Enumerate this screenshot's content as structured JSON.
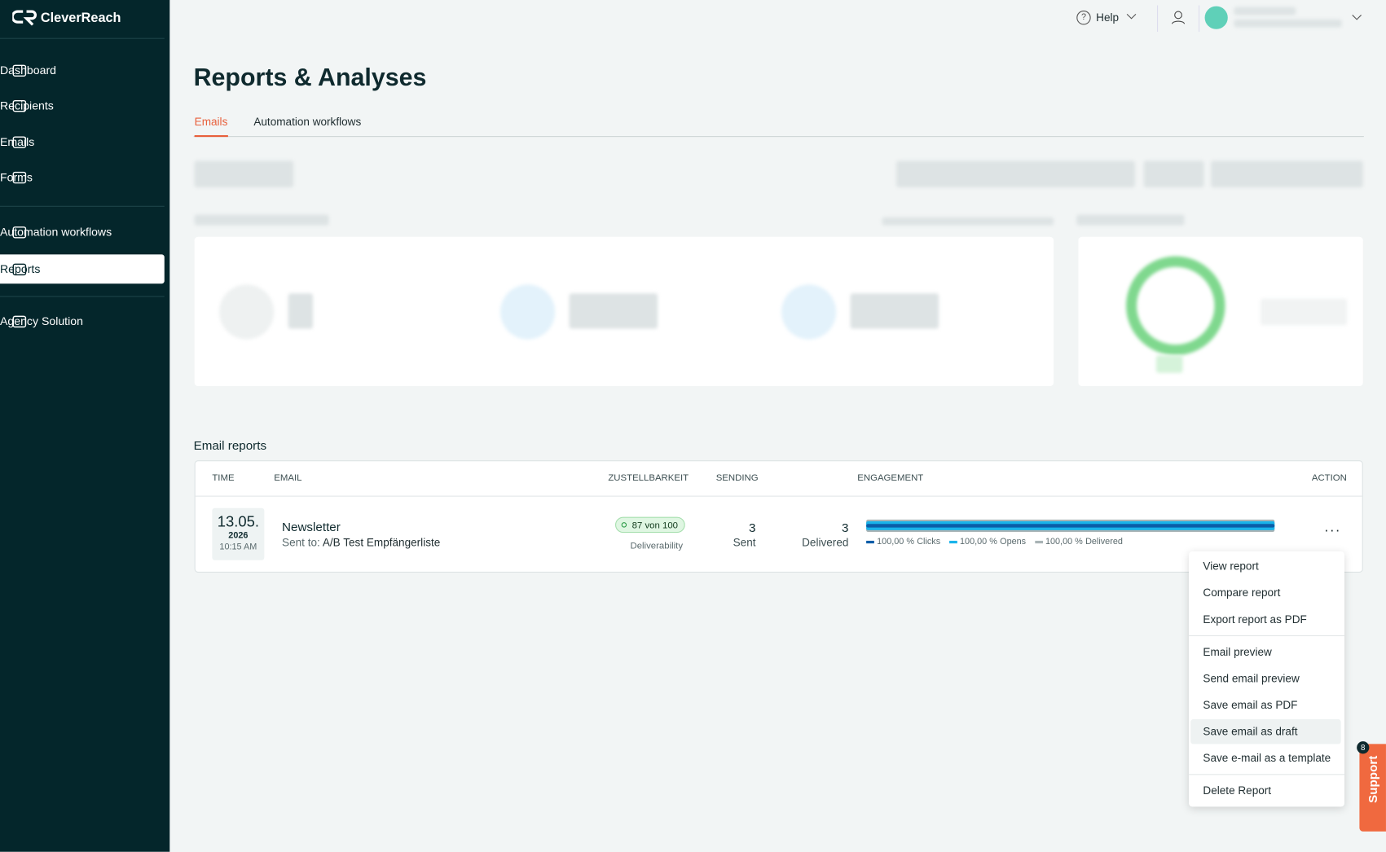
{
  "sidebar": {
    "brand": "CleverReach",
    "nav": [
      "Dashboard",
      "Recipients",
      "Emails",
      "Forms",
      "Automation workflows",
      "Reports",
      "Agency Solution"
    ]
  },
  "topbar": {
    "help": "Help"
  },
  "page": {
    "title": "Reports & Analyses",
    "tabs": [
      "Emails",
      "Automation workflows"
    ]
  },
  "reports": {
    "heading": "Email reports",
    "columns": [
      "TIME",
      "EMAIL",
      "ZUSTELLBARKEIT",
      "SENDING",
      "ENGAGEMENT",
      "ACTION"
    ],
    "rows": [
      {
        "date": "13.05.",
        "year": "2026",
        "time": "10:15 AM",
        "name": "Newsletter",
        "sent_to": "Sent to:",
        "list": "A/B Test Empfängerliste",
        "score": "87 von 100",
        "score_label": "Deliverability",
        "sent": 3,
        "sent_label": "Sent",
        "delivered": 3,
        "delivered_label": "Delivered",
        "engagement": [
          {
            "name": "Clicks",
            "value": 100,
            "label": "100,00 %",
            "color": "#0b5da8"
          },
          {
            "name": "Opens",
            "value": 100,
            "label": "100,00 %",
            "color": "#19b3ea"
          },
          {
            "name": "Delivered",
            "value": 100,
            "label": "100,00 %",
            "color": "#a9b3b5"
          }
        ]
      }
    ]
  },
  "menu": {
    "groups": [
      [
        "View report",
        "Compare report",
        "Export report as PDF"
      ],
      [
        "Email preview",
        "Send email preview",
        "Save email as PDF",
        "Save email as draft",
        "Save e-mail as a template"
      ],
      [
        "Delete Report"
      ]
    ]
  },
  "support": {
    "label": "Support",
    "badge": "8"
  }
}
